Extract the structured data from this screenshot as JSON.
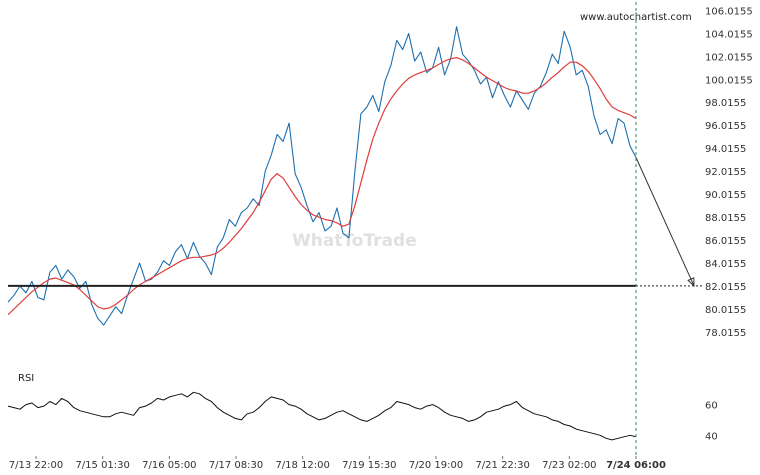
{
  "chart_data": [
    {
      "type": "line",
      "series": [
        {
          "color": "#1e6fb0",
          "values": [
            80.6,
            81.2,
            82.0,
            81.4,
            82.4,
            81.0,
            80.8,
            83.2,
            83.8,
            82.6,
            83.4,
            82.8,
            81.8,
            82.4,
            80.4,
            79.2,
            78.6,
            79.4,
            80.2,
            79.6,
            81.2,
            82.6,
            84.0,
            82.4,
            82.6,
            83.2,
            84.2,
            83.8,
            85.0,
            85.6,
            84.4,
            85.8,
            84.6,
            84.0,
            83.0,
            85.4,
            86.2,
            87.8,
            87.2,
            88.4,
            88.8,
            89.6,
            89.0,
            92.0,
            93.4,
            95.2,
            94.6,
            96.2,
            91.8,
            90.6,
            89.0,
            87.6,
            88.4,
            86.8,
            87.2,
            88.8,
            86.6,
            86.2,
            92.0,
            97.0,
            97.6,
            98.6,
            97.2,
            99.8,
            101.2,
            103.4,
            102.6,
            104.0,
            101.6,
            102.4,
            100.6,
            101.0,
            102.8,
            100.4,
            101.8,
            104.6,
            102.2,
            101.6,
            100.8,
            99.6,
            100.2,
            98.4,
            99.8,
            98.6,
            97.6,
            99.0,
            98.2,
            97.4,
            98.8,
            99.4,
            100.6,
            102.2,
            101.4,
            104.2,
            102.8,
            100.4,
            100.8,
            99.4,
            96.8,
            95.2,
            95.6,
            94.4,
            96.6,
            96.2,
            94.2,
            93.2
          ]
        },
        {
          "color": "#e03c3c",
          "values": [
            79.5,
            80.0,
            80.5,
            81.0,
            81.5,
            81.9,
            82.3,
            82.6,
            82.7,
            82.5,
            82.3,
            82.1,
            81.7,
            81.2,
            80.7,
            80.2,
            80.0,
            80.1,
            80.4,
            80.8,
            81.2,
            81.7,
            82.1,
            82.4,
            82.7,
            83.0,
            83.3,
            83.6,
            83.9,
            84.2,
            84.4,
            84.5,
            84.5,
            84.6,
            84.7,
            84.9,
            85.3,
            85.8,
            86.4,
            87.0,
            87.7,
            88.4,
            89.3,
            90.3,
            91.3,
            91.8,
            91.4,
            90.6,
            89.8,
            89.1,
            88.6,
            88.2,
            88.0,
            87.8,
            87.7,
            87.5,
            87.2,
            87.4,
            89.0,
            91.0,
            93.0,
            94.8,
            96.2,
            97.4,
            98.3,
            99.0,
            99.6,
            100.1,
            100.4,
            100.6,
            100.8,
            101.0,
            101.3,
            101.6,
            101.8,
            101.9,
            101.7,
            101.4,
            101.0,
            100.6,
            100.2,
            99.9,
            99.6,
            99.3,
            99.1,
            99.0,
            98.8,
            98.8,
            99.0,
            99.3,
            99.7,
            100.2,
            100.6,
            101.1,
            101.5,
            101.5,
            101.2,
            100.7,
            100.0,
            99.2,
            98.3,
            97.6,
            97.3,
            97.1,
            96.9,
            96.6
          ]
        }
      ],
      "x_tick_labels": [
        "7/13 22:00",
        "7/15 01:30",
        "7/16 05:00",
        "7/17 08:30",
        "7/18 12:00",
        "7/19 15:30",
        "7/20 19:00",
        "7/21 22:30",
        "7/23 02:00",
        "7/24 06:00"
      ],
      "y_tick_labels": [
        "106.0155",
        "104.0155",
        "102.0155",
        "100.0155",
        "98.0155",
        "96.0155",
        "94.0155",
        "92.0155",
        "90.0155",
        "88.0155",
        "86.0155",
        "84.0155",
        "82.0155",
        "80.0155",
        "78.0155"
      ],
      "ylim": [
        76.6,
        106.4
      ],
      "support_level": 82.0155,
      "projection": {
        "from": 93.2,
        "to": 82.0155
      },
      "grid": false
    },
    {
      "type": "line",
      "title": "RSI",
      "series": [
        {
          "color": "#111111",
          "values": [
            59,
            58,
            57,
            60,
            61,
            58,
            59,
            62,
            60,
            64,
            62,
            58,
            56,
            55,
            54,
            53,
            52,
            52,
            54,
            55,
            54,
            53,
            58,
            59,
            61,
            64,
            63,
            65,
            66,
            67,
            65,
            68,
            67,
            64,
            62,
            58,
            55,
            53,
            51,
            50,
            54,
            55,
            58,
            62,
            65,
            64,
            63,
            60,
            59,
            57,
            54,
            52,
            50,
            51,
            53,
            55,
            56,
            54,
            52,
            50,
            49,
            51,
            53,
            56,
            58,
            62,
            61,
            60,
            58,
            57,
            59,
            60,
            58,
            55,
            53,
            52,
            51,
            49,
            50,
            52,
            55,
            56,
            57,
            59,
            60,
            62,
            58,
            56,
            54,
            53,
            52,
            50,
            49,
            47,
            46,
            44,
            43,
            42,
            41,
            40,
            38,
            37,
            38,
            39,
            40,
            39
          ]
        }
      ],
      "y_tick_labels": [
        "60",
        "40"
      ],
      "ylim": [
        33,
        76
      ],
      "grid": false
    }
  ],
  "header": {
    "site": "www.autochartist.com"
  },
  "watermark": {
    "text": "WhatToTrade"
  }
}
